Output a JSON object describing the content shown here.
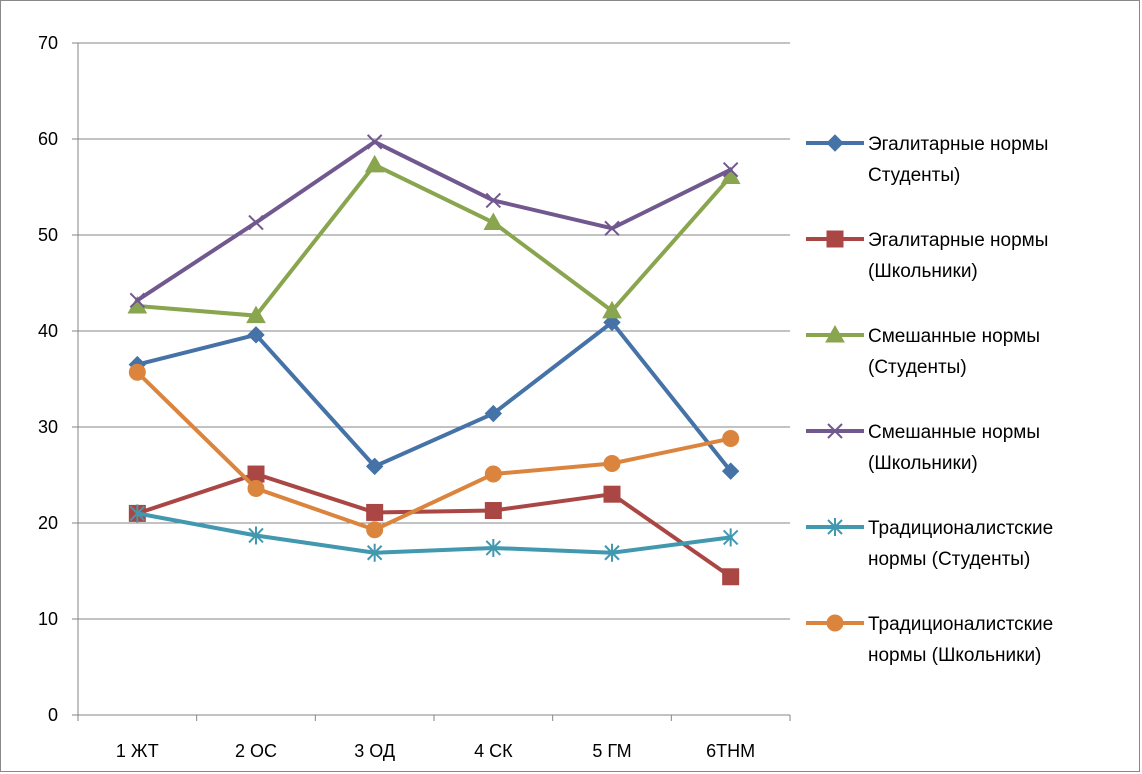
{
  "chart_data": {
    "type": "line",
    "title": "",
    "xlabel": "",
    "ylabel": "",
    "ylim": [
      0,
      70
    ],
    "yticks": [
      0,
      10,
      20,
      30,
      40,
      50,
      60,
      70
    ],
    "grid": true,
    "legend_position": "right",
    "categories": [
      "1 ЖТ",
      "2 ОС",
      "3 ОД",
      "4 СК",
      "5 ГМ",
      "6ТНМ"
    ],
    "series": [
      {
        "name": "Эгалитарные нормы Студенты)",
        "legend_lines": [
          "Эгалитарные нормы",
          "Студенты)"
        ],
        "color": "#4572A7",
        "marker": "diamond",
        "values": [
          36.5,
          39.6,
          25.9,
          31.4,
          40.9,
          25.4
        ]
      },
      {
        "name": "Эгалитарные нормы (Школьники)",
        "legend_lines": [
          "Эгалитарные нормы",
          "(Школьники)"
        ],
        "color": "#AA4643",
        "marker": "square",
        "values": [
          21.0,
          25.1,
          21.1,
          21.3,
          23.0,
          14.4
        ]
      },
      {
        "name": "Смешанные нормы (Студенты)",
        "legend_lines": [
          "Смешанные нормы",
          "(Студенты)"
        ],
        "color": "#89A54E",
        "marker": "triangle",
        "values": [
          42.6,
          41.6,
          57.3,
          51.3,
          42.1,
          56.1
        ]
      },
      {
        "name": "Смешанные нормы (Школьники)",
        "legend_lines": [
          "Смешанные нормы",
          "(Школьники)"
        ],
        "color": "#71588F",
        "marker": "x",
        "values": [
          43.2,
          51.3,
          59.7,
          53.6,
          50.7,
          56.8
        ]
      },
      {
        "name": "Традиционалистские нормы (Студенты)",
        "legend_lines": [
          "Традиционалистские",
          "нормы (Студенты)"
        ],
        "color": "#4198AF",
        "marker": "star",
        "values": [
          21.0,
          18.7,
          16.9,
          17.4,
          16.9,
          18.5
        ]
      },
      {
        "name": "Традиционалистские нормы (Школьники)",
        "legend_lines": [
          "Традиционалистские",
          "нормы (Школьники)"
        ],
        "color": "#DB843D",
        "marker": "circle",
        "values": [
          35.7,
          23.6,
          19.3,
          25.1,
          26.2,
          28.8
        ]
      }
    ]
  }
}
